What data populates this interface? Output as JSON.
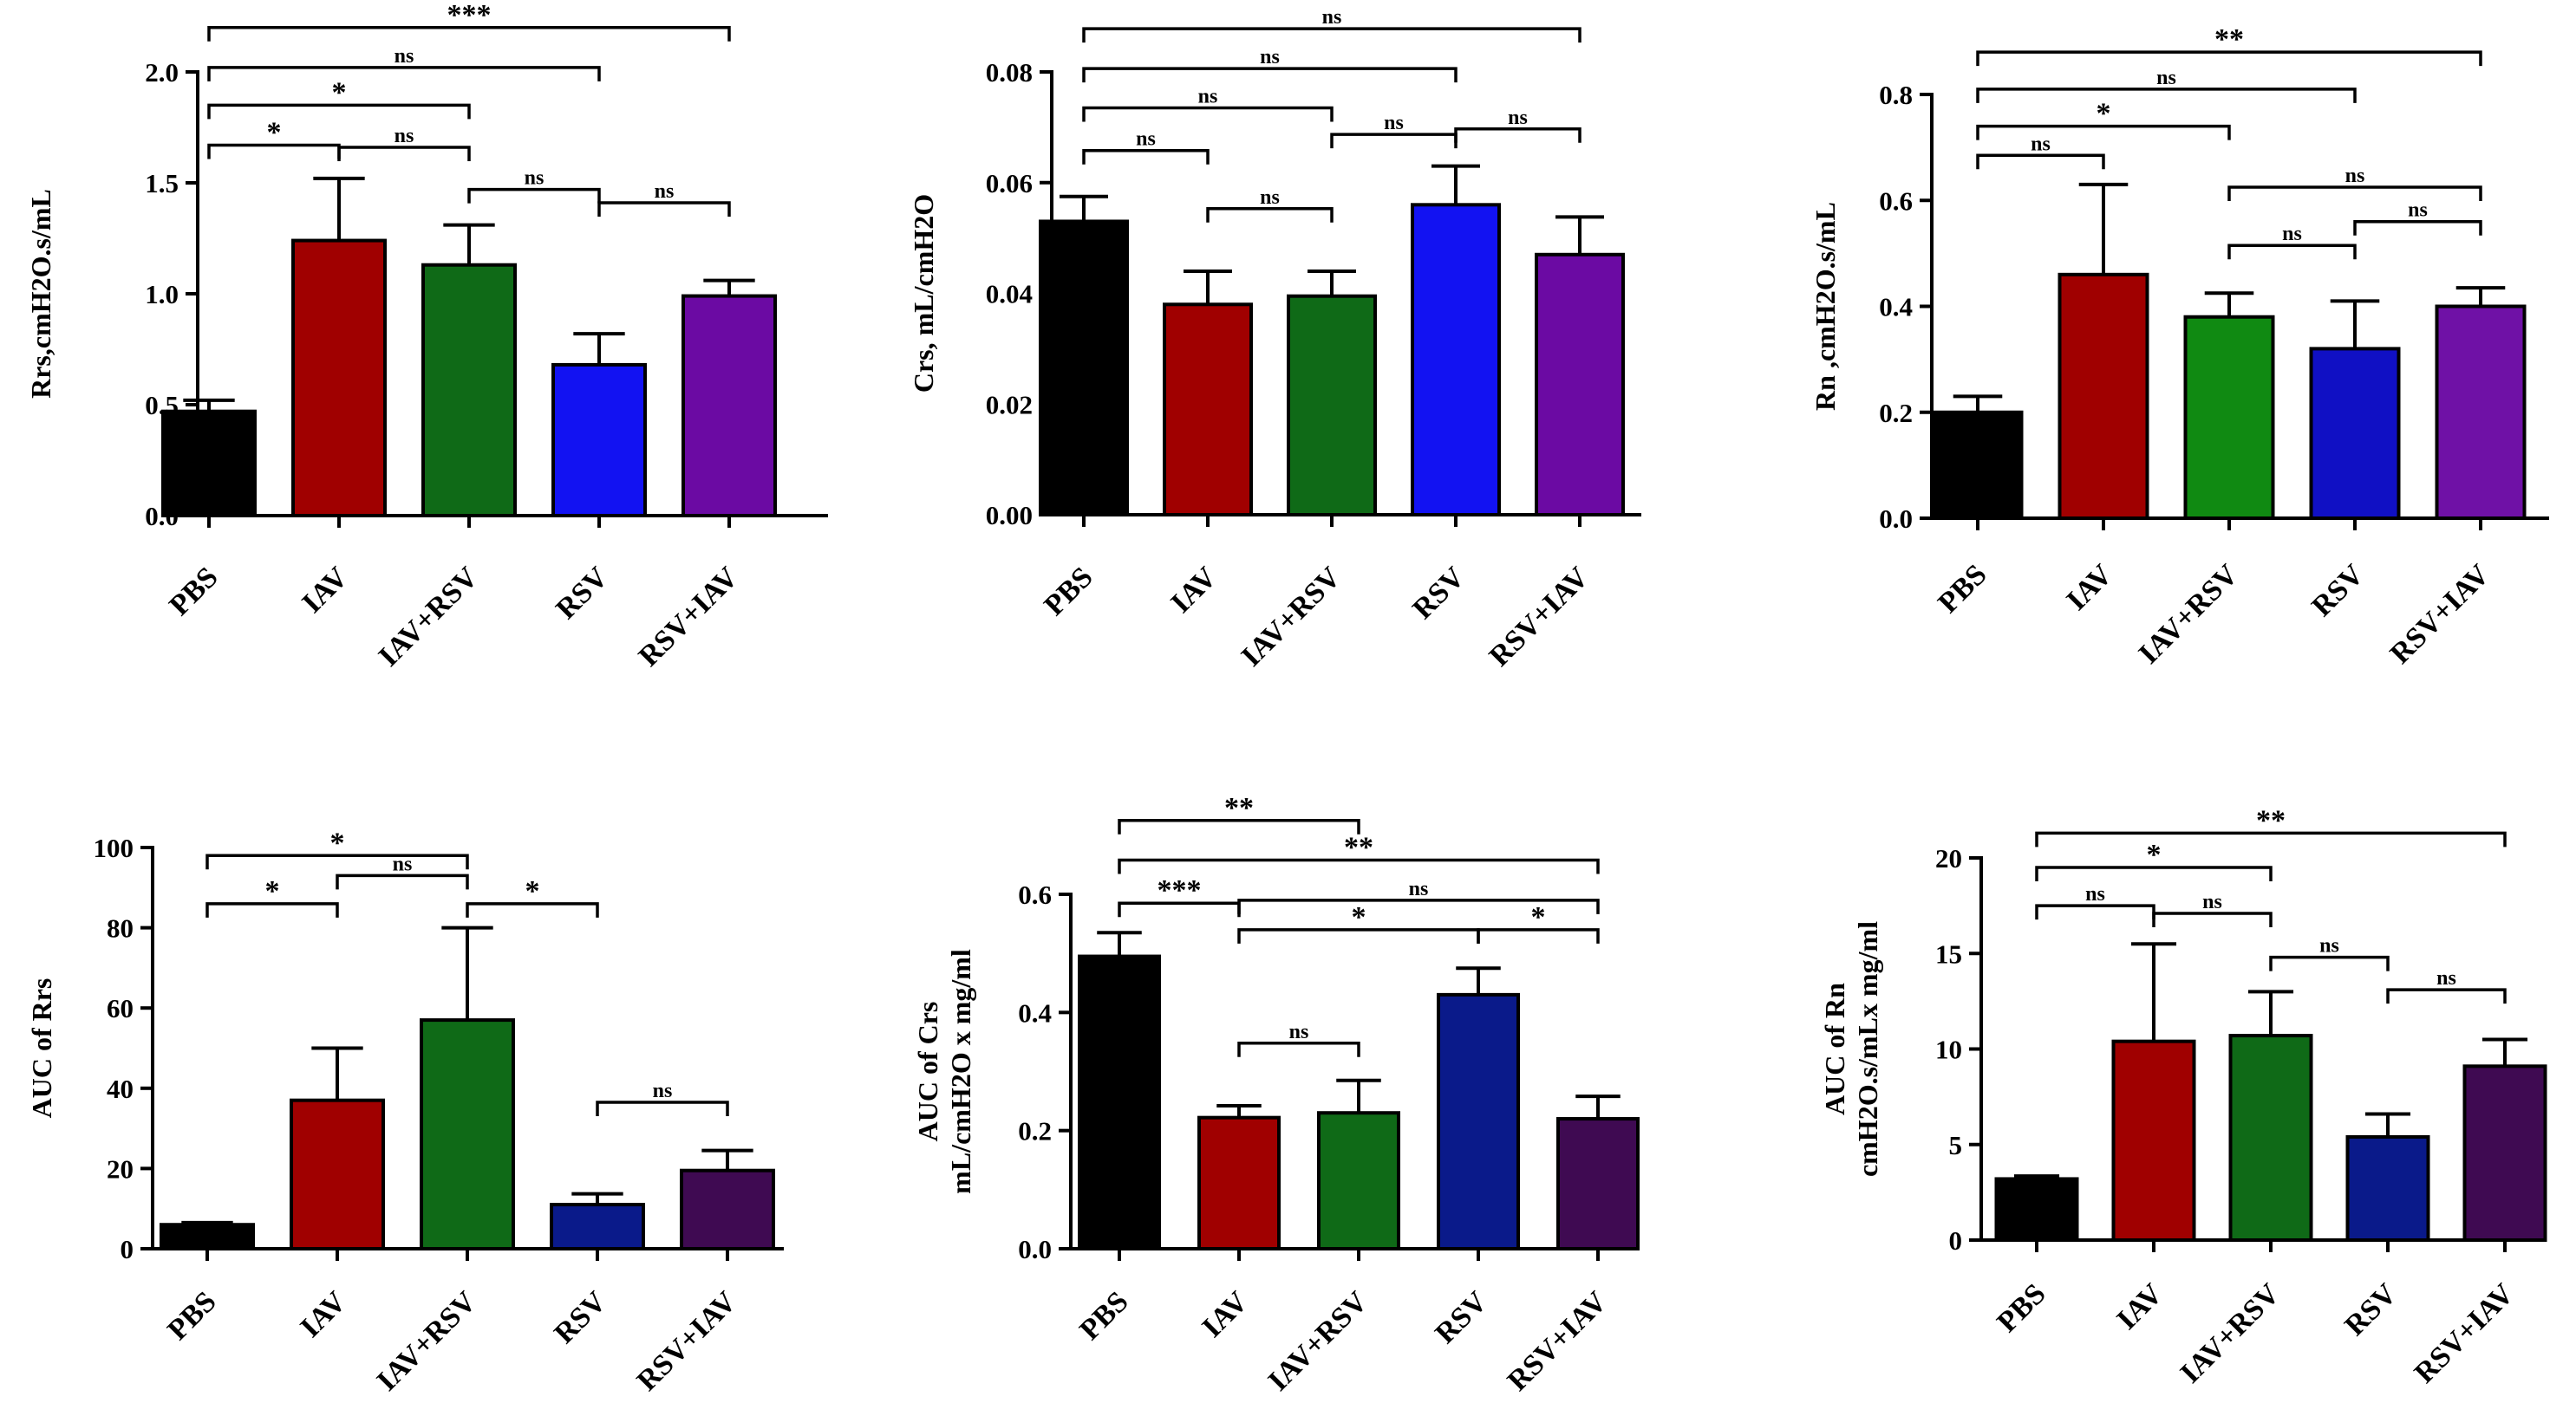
{
  "chart_data": [
    {
      "type": "bar",
      "title": "",
      "ylabel": [
        "Rrs,cmH2O.s/mL"
      ],
      "categories": [
        "PBS",
        "IAV",
        "IAV+RSV",
        "RSV",
        "RSV+IAV"
      ],
      "values": [
        0.47,
        1.24,
        1.13,
        0.68,
        0.99
      ],
      "errors": [
        0.05,
        0.28,
        0.18,
        0.14,
        0.07
      ],
      "colors": [
        "#000000",
        "#a00000",
        "#0f6a17",
        "#1212f2",
        "#6b0aa3"
      ],
      "ylim": [
        0,
        2.0
      ],
      "yticks": [
        0,
        0.5,
        1.0,
        1.5,
        2.0
      ],
      "yticklabels": [
        "0.0",
        "0.5",
        "1.0",
        "1.5",
        "2.0"
      ],
      "comparisons": [
        {
          "from": 0,
          "to": 4,
          "label": "***",
          "level": 2.2
        },
        {
          "from": 0,
          "to": 3,
          "label": "ns",
          "level": 2.02
        },
        {
          "from": 0,
          "to": 2,
          "label": "*",
          "level": 1.85
        },
        {
          "from": 0,
          "to": 1,
          "label": "*",
          "level": 1.67
        },
        {
          "from": 1,
          "to": 2,
          "label": "ns",
          "level": 1.66
        },
        {
          "from": 2,
          "to": 3,
          "label": "ns",
          "level": 1.47
        },
        {
          "from": 3,
          "to": 4,
          "label": "ns",
          "level": 1.41
        }
      ]
    },
    {
      "type": "bar",
      "title": "",
      "ylabel": [
        "Crs, mL/cmH2O"
      ],
      "categories": [
        "PBS",
        "IAV",
        "IAV+RSV",
        "RSV",
        "RSV+IAV"
      ],
      "values": [
        0.053,
        0.038,
        0.0395,
        0.056,
        0.047
      ],
      "errors": [
        0.0045,
        0.006,
        0.0045,
        0.007,
        0.0068
      ],
      "colors": [
        "#000000",
        "#a00000",
        "#0f6a17",
        "#1212f2",
        "#6b0aa3"
      ],
      "ylim": [
        0,
        0.08
      ],
      "yticks": [
        0,
        0.02,
        0.04,
        0.06,
        0.08
      ],
      "yticklabels": [
        "0.00",
        "0.02",
        "0.04",
        "0.06",
        "0.08"
      ],
      "comparisons": [
        {
          "from": 0,
          "to": 4,
          "label": "ns",
          "level": 0.0878
        },
        {
          "from": 0,
          "to": 3,
          "label": "ns",
          "level": 0.0806
        },
        {
          "from": 0,
          "to": 2,
          "label": "ns",
          "level": 0.0735
        },
        {
          "from": 0,
          "to": 1,
          "label": "ns",
          "level": 0.0658
        },
        {
          "from": 1,
          "to": 2,
          "label": "ns",
          "level": 0.0553
        },
        {
          "from": 2,
          "to": 3,
          "label": "ns",
          "level": 0.0687
        },
        {
          "from": 3,
          "to": 4,
          "label": "ns",
          "level": 0.0697
        }
      ]
    },
    {
      "type": "bar",
      "title": "",
      "ylabel": [
        "Rn ,cmH2O.s/mL"
      ],
      "categories": [
        "PBS",
        "IAV",
        "IAV+RSV",
        "RSV",
        "RSV+IAV"
      ],
      "values": [
        0.2,
        0.46,
        0.38,
        0.32,
        0.4
      ],
      "errors": [
        0.03,
        0.17,
        0.045,
        0.09,
        0.035
      ],
      "colors": [
        "#000000",
        "#a00000",
        "#108a12",
        "#1010c4",
        "#6f11a6"
      ],
      "ylim": [
        0,
        0.8
      ],
      "yticks": [
        0,
        0.2,
        0.4,
        0.6,
        0.8
      ],
      "yticklabels": [
        "0.0",
        "0.2",
        "0.4",
        "0.6",
        "0.8"
      ],
      "comparisons": [
        {
          "from": 0,
          "to": 4,
          "label": "**",
          "level": 0.88
        },
        {
          "from": 0,
          "to": 3,
          "label": "ns",
          "level": 0.81
        },
        {
          "from": 0,
          "to": 2,
          "label": "*",
          "level": 0.74
        },
        {
          "from": 0,
          "to": 1,
          "label": "ns",
          "level": 0.685
        },
        {
          "from": 2,
          "to": 4,
          "label": "ns",
          "level": 0.625
        },
        {
          "from": 2,
          "to": 3,
          "label": "ns",
          "level": 0.515
        },
        {
          "from": 3,
          "to": 4,
          "label": "ns",
          "level": 0.56
        }
      ]
    },
    {
      "type": "bar",
      "title": "",
      "ylabel": [
        "AUC of Rrs"
      ],
      "categories": [
        "PBS",
        "IAV",
        "IAV+RSV",
        "RSV",
        "RSV+IAV"
      ],
      "values": [
        6,
        37,
        57,
        11,
        19.5
      ],
      "errors": [
        0.5,
        13,
        23,
        2.7,
        5
      ],
      "colors": [
        "#000000",
        "#a00000",
        "#0f6a17",
        "#0a1a8a",
        "#3f0a52"
      ],
      "ylim": [
        0,
        100
      ],
      "yticks": [
        0,
        20,
        40,
        60,
        80,
        100
      ],
      "yticklabels": [
        "0",
        "20",
        "40",
        "60",
        "80",
        "100"
      ],
      "comparisons": [
        {
          "from": 0,
          "to": 2,
          "label": "*",
          "level": 98
        },
        {
          "from": 0,
          "to": 1,
          "label": "*",
          "level": 86
        },
        {
          "from": 1,
          "to": 2,
          "label": "ns",
          "level": 93
        },
        {
          "from": 2,
          "to": 3,
          "label": "*",
          "level": 86
        },
        {
          "from": 3,
          "to": 4,
          "label": "ns",
          "level": 36.5
        }
      ]
    },
    {
      "type": "bar",
      "title": "",
      "ylabel": [
        "AUC of Crs",
        "mL/cmH2O x mg/ml"
      ],
      "categories": [
        "PBS",
        "IAV",
        "IAV+RSV",
        "RSV",
        "RSV+IAV"
      ],
      "values": [
        0.495,
        0.222,
        0.23,
        0.43,
        0.22
      ],
      "errors": [
        0.04,
        0.02,
        0.055,
        0.045,
        0.038
      ],
      "colors": [
        "#000000",
        "#a00000",
        "#0f6a17",
        "#0a1a8a",
        "#3f0a52"
      ],
      "ylim": [
        0,
        0.6
      ],
      "yticks": [
        0,
        0.2,
        0.4,
        0.6
      ],
      "yticklabels": [
        "0.0",
        "0.2",
        "0.4",
        "0.6"
      ],
      "comparisons": [
        {
          "from": 0,
          "to": 2,
          "label": "**",
          "level": 0.725
        },
        {
          "from": 0,
          "to": 4,
          "label": "**",
          "level": 0.658
        },
        {
          "from": 0,
          "to": 1,
          "label": "***",
          "level": 0.585
        },
        {
          "from": 1,
          "to": 4,
          "label": "ns",
          "level": 0.59
        },
        {
          "from": 1,
          "to": 3,
          "label": "*",
          "level": 0.54
        },
        {
          "from": 3,
          "to": 4,
          "label": "*",
          "level": 0.54
        },
        {
          "from": 1,
          "to": 2,
          "label": "ns",
          "level": 0.348
        }
      ]
    },
    {
      "type": "bar",
      "title": "",
      "ylabel": [
        "AUC of Rn",
        "cmH2O.s/mLx mg/ml"
      ],
      "categories": [
        "PBS",
        "IAV",
        "IAV+RSV",
        "RSV",
        "RSV+IAV"
      ],
      "values": [
        3.2,
        10.4,
        10.7,
        5.4,
        9.1
      ],
      "errors": [
        0.15,
        5.1,
        2.3,
        1.2,
        1.4
      ],
      "colors": [
        "#000000",
        "#a00000",
        "#0f6a17",
        "#0a1a8a",
        "#3f0a52"
      ],
      "ylim": [
        0,
        20
      ],
      "yticks": [
        0,
        5,
        10,
        15,
        20
      ],
      "yticklabels": [
        "0",
        "5",
        "10",
        "15",
        "20"
      ],
      "comparisons": [
        {
          "from": 0,
          "to": 4,
          "label": "**",
          "level": 21.3
        },
        {
          "from": 0,
          "to": 2,
          "label": "*",
          "level": 19.5
        },
        {
          "from": 0,
          "to": 1,
          "label": "ns",
          "level": 17.5
        },
        {
          "from": 1,
          "to": 2,
          "label": "ns",
          "level": 17.1
        },
        {
          "from": 2,
          "to": 3,
          "label": "ns",
          "level": 14.8
        },
        {
          "from": 3,
          "to": 4,
          "label": "ns",
          "level": 13.1
        }
      ]
    }
  ]
}
